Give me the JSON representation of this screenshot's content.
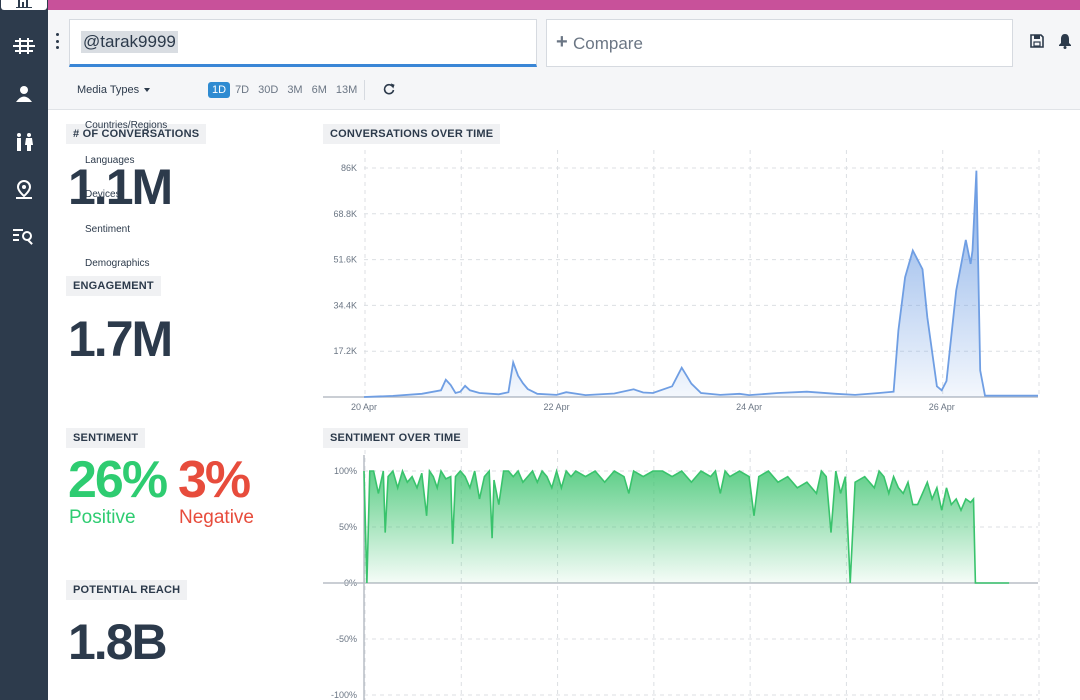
{
  "header": {
    "query_value": "@tarak9999",
    "compare_label": "Compare"
  },
  "filters": {
    "media_types": "Media Types",
    "ranges": [
      "1D",
      "7D",
      "30D",
      "3M",
      "6M",
      "13M"
    ],
    "active_range": "1D"
  },
  "dropdown_items": [
    "Countries/Regions",
    "Languages",
    "Devices",
    "Sentiment",
    "Demographics"
  ],
  "metrics": {
    "conversations_label": "# OF CONVERSATIONS",
    "conversations_value": "1.1M",
    "engagement_label": "ENGAGEMENT",
    "engagement_value": "1.7M",
    "sentiment_label": "SENTIMENT",
    "positive_value": "26%",
    "positive_label": "Positive",
    "negative_value": "3%",
    "negative_label": "Negative",
    "reach_label": "POTENTIAL REACH",
    "reach_value": "1.8B"
  },
  "colors": {
    "accent": "#c8519a",
    "sidebar": "#2d3b4c",
    "positive": "#2ecc71",
    "negative": "#e74c3c",
    "line_blue": "#6f9ee3",
    "line_green": "#39c36c"
  },
  "chart_data": [
    {
      "type": "area",
      "title": "CONVERSATIONS OVER TIME",
      "x_ticks": [
        "20 Apr",
        "22 Apr",
        "24 Apr",
        "26 Apr"
      ],
      "y_ticks": [
        "86K",
        "68.8K",
        "51.6K",
        "34.4K",
        "17.2K"
      ],
      "ylim": [
        0,
        86000
      ],
      "x_range_days": [
        0,
        7
      ],
      "series": [
        {
          "values": [
            [
              0.0,
              0
            ],
            [
              0.3,
              400
            ],
            [
              0.6,
              1200
            ],
            [
              0.8,
              2500
            ],
            [
              0.85,
              6500
            ],
            [
              0.9,
              4500
            ],
            [
              0.95,
              1500
            ],
            [
              1.0,
              2000
            ],
            [
              1.05,
              4200
            ],
            [
              1.1,
              2500
            ],
            [
              1.2,
              1500
            ],
            [
              1.4,
              1000
            ],
            [
              1.5,
              1800
            ],
            [
              1.55,
              13000
            ],
            [
              1.6,
              8000
            ],
            [
              1.65,
              5200
            ],
            [
              1.7,
              3000
            ],
            [
              1.8,
              1200
            ],
            [
              2.0,
              800
            ],
            [
              2.1,
              1800
            ],
            [
              2.3,
              700
            ],
            [
              2.6,
              1300
            ],
            [
              2.8,
              2900
            ],
            [
              2.9,
              1700
            ],
            [
              3.0,
              1500
            ],
            [
              3.2,
              4000
            ],
            [
              3.3,
              11000
            ],
            [
              3.35,
              8000
            ],
            [
              3.4,
              5000
            ],
            [
              3.5,
              1500
            ],
            [
              3.7,
              800
            ],
            [
              3.9,
              1200
            ],
            [
              4.0,
              700
            ],
            [
              4.3,
              1500
            ],
            [
              4.6,
              2000
            ],
            [
              4.9,
              1200
            ],
            [
              5.1,
              800
            ],
            [
              5.35,
              1500
            ],
            [
              5.5,
              2000
            ],
            [
              5.55,
              25000
            ],
            [
              5.62,
              45000
            ],
            [
              5.7,
              55000
            ],
            [
              5.8,
              48000
            ],
            [
              5.85,
              30000
            ],
            [
              5.95,
              4000
            ],
            [
              6.0,
              2500
            ],
            [
              6.05,
              6000
            ],
            [
              6.15,
              40000
            ],
            [
              6.25,
              59000
            ],
            [
              6.3,
              50000
            ],
            [
              6.32,
              55000
            ],
            [
              6.36,
              85000
            ],
            [
              6.4,
              10000
            ],
            [
              6.45,
              500
            ],
            [
              6.7,
              500
            ],
            [
              7.0,
              500
            ]
          ]
        }
      ]
    },
    {
      "type": "area",
      "title": "SENTIMENT OVER TIME",
      "y_ticks": [
        "100%",
        "50%",
        "0%",
        "-50%",
        "-100%"
      ],
      "ylim": [
        -100,
        100
      ],
      "x_range_days": [
        0,
        7
      ],
      "series": [
        {
          "values": [
            [
              0.0,
              100
            ],
            [
              0.03,
              0
            ],
            [
              0.06,
              100
            ],
            [
              0.1,
              100
            ],
            [
              0.15,
              80
            ],
            [
              0.2,
              100
            ],
            [
              0.22,
              45
            ],
            [
              0.25,
              95
            ],
            [
              0.3,
              100
            ],
            [
              0.35,
              85
            ],
            [
              0.4,
              100
            ],
            [
              0.45,
              90
            ],
            [
              0.5,
              95
            ],
            [
              0.55,
              85
            ],
            [
              0.6,
              98
            ],
            [
              0.65,
              60
            ],
            [
              0.68,
              100
            ],
            [
              0.72,
              95
            ],
            [
              0.76,
              85
            ],
            [
              0.8,
              100
            ],
            [
              0.85,
              93
            ],
            [
              0.9,
              95
            ],
            [
              0.92,
              35
            ],
            [
              0.95,
              95
            ],
            [
              1.0,
              100
            ],
            [
              1.05,
              95
            ],
            [
              1.1,
              85
            ],
            [
              1.15,
              100
            ],
            [
              1.2,
              75
            ],
            [
              1.25,
              95
            ],
            [
              1.3,
              100
            ],
            [
              1.33,
              40
            ],
            [
              1.35,
              92
            ],
            [
              1.4,
              70
            ],
            [
              1.45,
              100
            ],
            [
              1.5,
              100
            ],
            [
              1.55,
              95
            ],
            [
              1.6,
              100
            ],
            [
              1.65,
              90
            ],
            [
              1.7,
              95
            ],
            [
              1.75,
              100
            ],
            [
              1.8,
              90
            ],
            [
              1.85,
              100
            ],
            [
              1.9,
              95
            ],
            [
              1.95,
              85
            ],
            [
              2.0,
              100
            ],
            [
              2.05,
              85
            ],
            [
              2.1,
              100
            ],
            [
              2.15,
              95
            ],
            [
              2.2,
              100
            ],
            [
              2.3,
              95
            ],
            [
              2.4,
              100
            ],
            [
              2.5,
              90
            ],
            [
              2.6,
              100
            ],
            [
              2.7,
              95
            ],
            [
              2.75,
              80
            ],
            [
              2.8,
              100
            ],
            [
              2.9,
              95
            ],
            [
              3.0,
              100
            ],
            [
              3.1,
              100
            ],
            [
              3.2,
              95
            ],
            [
              3.3,
              100
            ],
            [
              3.4,
              90
            ],
            [
              3.5,
              100
            ],
            [
              3.6,
              95
            ],
            [
              3.65,
              100
            ],
            [
              3.7,
              80
            ],
            [
              3.75,
              100
            ],
            [
              3.8,
              95
            ],
            [
              3.9,
              100
            ],
            [
              4.0,
              95
            ],
            [
              4.05,
              60
            ],
            [
              4.1,
              95
            ],
            [
              4.2,
              100
            ],
            [
              4.3,
              90
            ],
            [
              4.4,
              95
            ],
            [
              4.5,
              85
            ],
            [
              4.6,
              90
            ],
            [
              4.7,
              80
            ],
            [
              4.75,
              100
            ],
            [
              4.8,
              95
            ],
            [
              4.85,
              45
            ],
            [
              4.9,
              100
            ],
            [
              4.95,
              80
            ],
            [
              5.0,
              95
            ],
            [
              5.05,
              0
            ],
            [
              5.1,
              90
            ],
            [
              5.2,
              95
            ],
            [
              5.3,
              85
            ],
            [
              5.35,
              100
            ],
            [
              5.4,
              95
            ],
            [
              5.45,
              80
            ],
            [
              5.5,
              95
            ],
            [
              5.55,
              85
            ],
            [
              5.6,
              80
            ],
            [
              5.65,
              90
            ],
            [
              5.7,
              70
            ],
            [
              5.75,
              70
            ],
            [
              5.8,
              80
            ],
            [
              5.85,
              90
            ],
            [
              5.9,
              75
            ],
            [
              5.95,
              85
            ],
            [
              6.0,
              65
            ],
            [
              6.05,
              85
            ],
            [
              6.1,
              70
            ],
            [
              6.15,
              75
            ],
            [
              6.2,
              65
            ],
            [
              6.25,
              75
            ],
            [
              6.3,
              72
            ],
            [
              6.33,
              75
            ],
            [
              6.35,
              0
            ],
            [
              6.6,
              0
            ],
            [
              6.7,
              0
            ]
          ]
        }
      ]
    }
  ]
}
